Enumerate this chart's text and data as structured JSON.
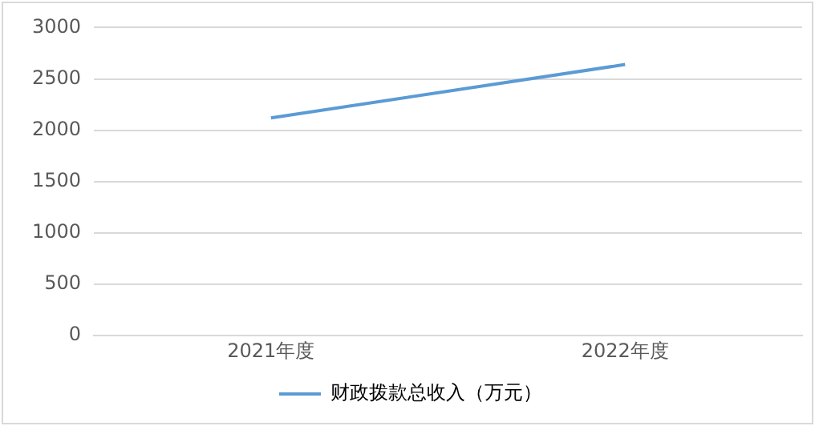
{
  "chart_data": {
    "type": "line",
    "categories": [
      "2021年度",
      "2022年度"
    ],
    "series": [
      {
        "name": "财政拨款总收入（万元）",
        "color": "#5b9bd5",
        "values": [
          2120,
          2640
        ]
      }
    ],
    "ylim": [
      0,
      3000
    ],
    "yticks": [
      0,
      500,
      1000,
      1500,
      2000,
      2500,
      3000
    ],
    "grid": "y",
    "legend": "bottom",
    "marker": "none"
  }
}
